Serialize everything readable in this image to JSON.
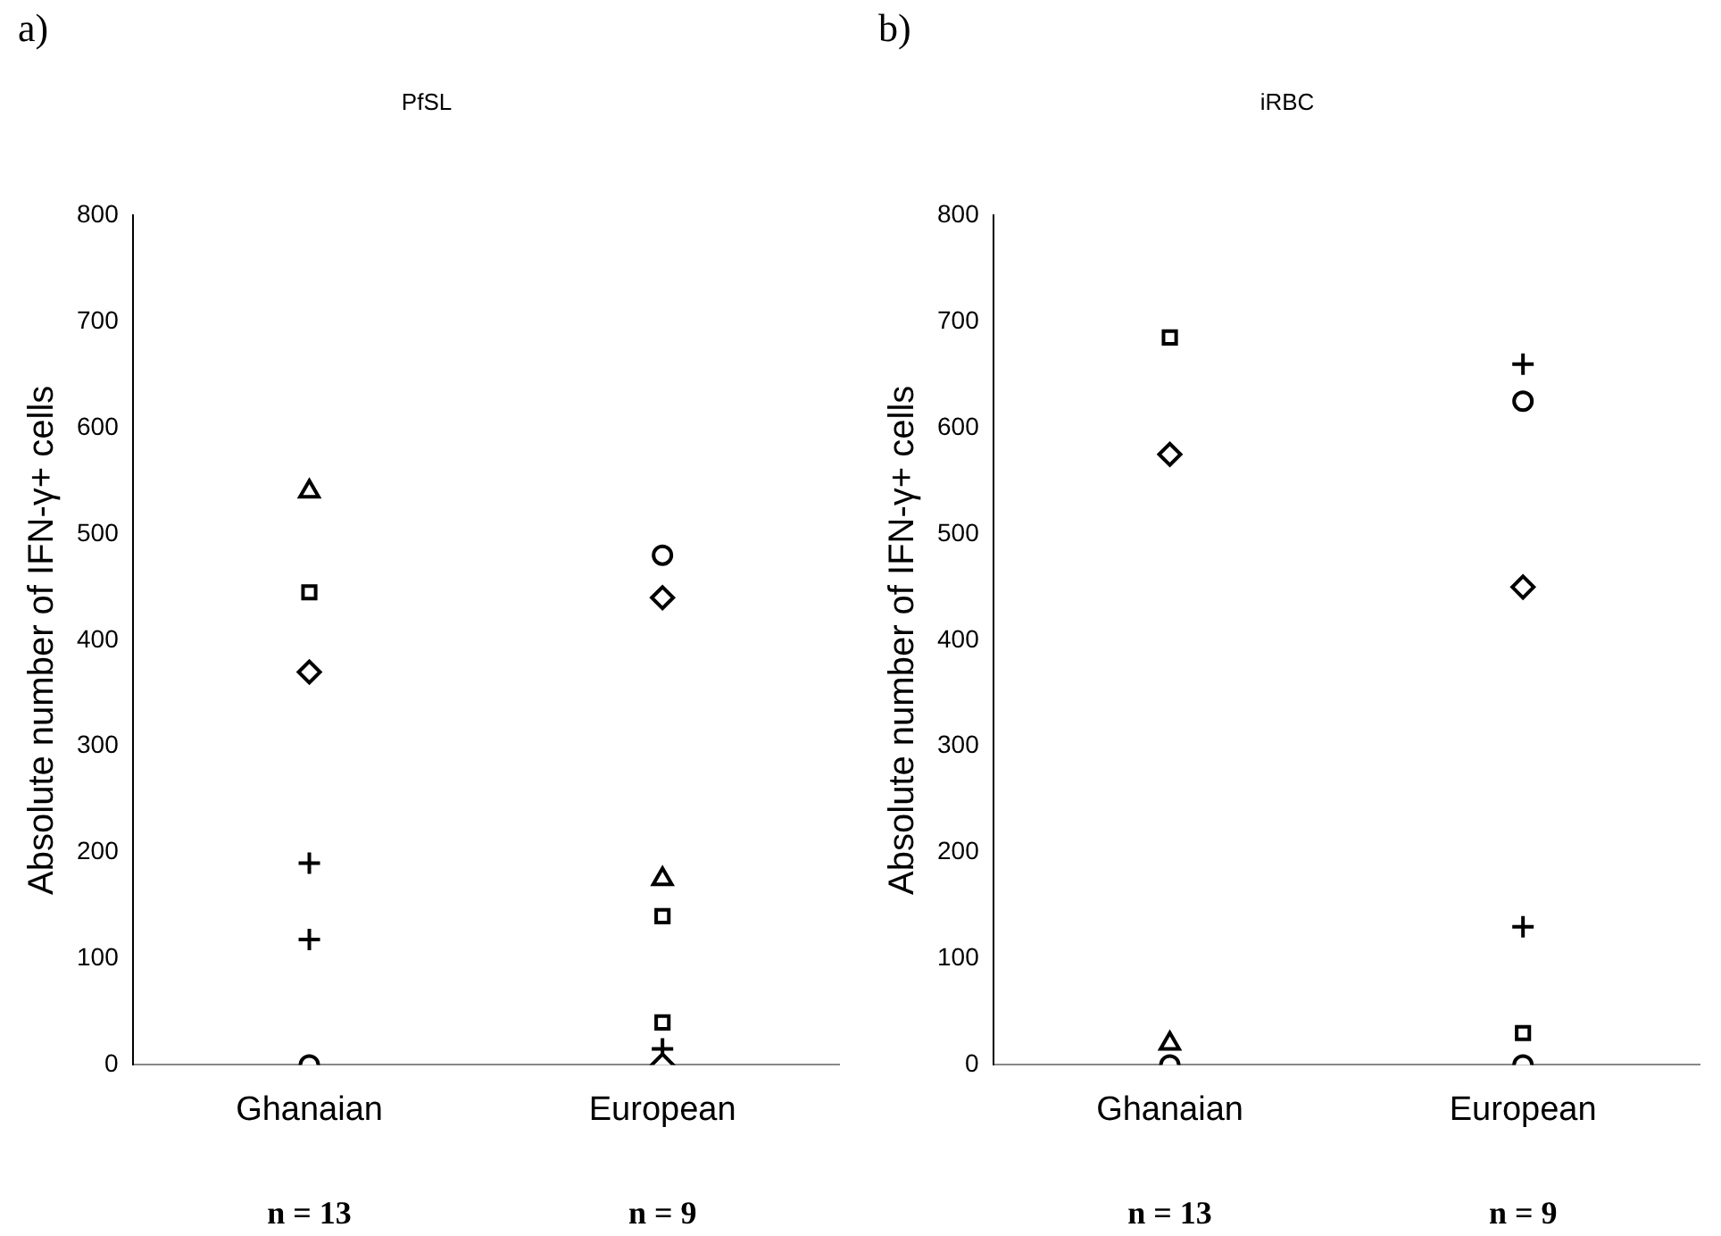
{
  "chart_data": [
    {
      "type": "scatter",
      "title": "PfSL",
      "ylabel": "Absolute number of IFN-γ+ cells",
      "annotations": [
        "a)",
        "n = 13",
        "n = 9"
      ],
      "categories": [
        "Ghanaian",
        "European"
      ],
      "ylim": [
        0,
        800
      ],
      "yticks": [
        0,
        100,
        200,
        300,
        400,
        500,
        600,
        700,
        800
      ],
      "grid": false,
      "legend": false,
      "series": [
        {
          "marker": "triangle",
          "color": "#000000",
          "x": [
            "Ghanaian",
            "European"
          ],
          "values": [
            540,
            175
          ]
        },
        {
          "marker": "square",
          "color": "#000000",
          "x": [
            "Ghanaian",
            "European",
            "European"
          ],
          "values": [
            445,
            140,
            40
          ]
        },
        {
          "marker": "diamond",
          "color": "#000000",
          "x": [
            "Ghanaian",
            "European",
            "European"
          ],
          "values": [
            370,
            440,
            0
          ]
        },
        {
          "marker": "cross",
          "color": "#000000",
          "x": [
            "Ghanaian",
            "Ghanaian",
            "European"
          ],
          "values": [
            190,
            118,
            15
          ]
        },
        {
          "marker": "circle",
          "color": "#000000",
          "x": [
            "Ghanaian",
            "European"
          ],
          "values": [
            0,
            480
          ]
        }
      ]
    },
    {
      "type": "scatter",
      "title": "iRBC",
      "ylabel": "Absolute number of IFN-γ+ cells",
      "annotations": [
        "b)",
        "n = 13",
        "n = 9"
      ],
      "categories": [
        "Ghanaian",
        "European"
      ],
      "ylim": [
        0,
        800
      ],
      "yticks": [
        0,
        100,
        200,
        300,
        400,
        500,
        600,
        700,
        800
      ],
      "grid": false,
      "legend": false,
      "series": [
        {
          "marker": "square",
          "color": "#000000",
          "x": [
            "Ghanaian",
            "European"
          ],
          "values": [
            685,
            30
          ]
        },
        {
          "marker": "diamond",
          "color": "#000000",
          "x": [
            "Ghanaian",
            "European"
          ],
          "values": [
            575,
            450
          ]
        },
        {
          "marker": "triangle",
          "color": "#000000",
          "x": [
            "Ghanaian"
          ],
          "values": [
            20
          ]
        },
        {
          "marker": "circle",
          "color": "#000000",
          "x": [
            "Ghanaian",
            "European",
            "European"
          ],
          "values": [
            0,
            625,
            0
          ]
        },
        {
          "marker": "cross",
          "color": "#000000",
          "x": [
            "European",
            "European"
          ],
          "values": [
            660,
            130
          ]
        }
      ]
    }
  ]
}
